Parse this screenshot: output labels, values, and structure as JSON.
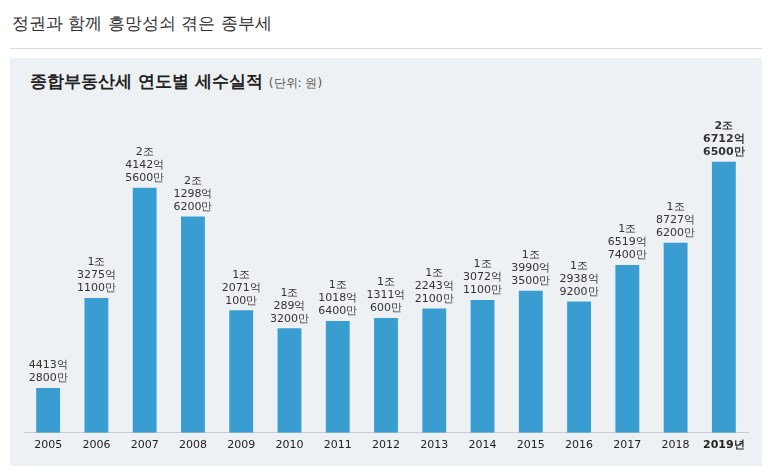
{
  "header": {
    "title": "정권과 함께 흥망성쇠 겪은 종부세"
  },
  "chart_data": {
    "type": "bar",
    "title": "종합부동산세 연도별 세수실적",
    "subtitle": "(단위: 원)",
    "categories": [
      "2005",
      "2006",
      "2007",
      "2008",
      "2009",
      "2010",
      "2011",
      "2012",
      "2013",
      "2014",
      "2015",
      "2016",
      "2017",
      "2018",
      "2019년"
    ],
    "values": [
      441328000000,
      1327511000000,
      2414256000000,
      2129862000000,
      1207101000000,
      1028932000000,
      1101864000000,
      1131106000000,
      1224321000000,
      1307211000000,
      1399035000000,
      1293892000000,
      1651974000000,
      1872762000000,
      2671265000000
    ],
    "value_labels": [
      [
        "4413억",
        "2800만"
      ],
      [
        "1조",
        "3275억",
        "1100만"
      ],
      [
        "2조",
        "4142억",
        "5600만"
      ],
      [
        "2조",
        "1298억",
        "6200만"
      ],
      [
        "1조",
        "2071억",
        "100만"
      ],
      [
        "1조",
        "289억",
        "3200만"
      ],
      [
        "1조",
        "1018억",
        "6400만"
      ],
      [
        "1조",
        "1311억",
        "600만"
      ],
      [
        "1조",
        "2243억",
        "2100만"
      ],
      [
        "1조",
        "3072억",
        "1100만"
      ],
      [
        "1조",
        "3990억",
        "3500만"
      ],
      [
        "1조",
        "2938억",
        "9200만"
      ],
      [
        "1조",
        "6519억",
        "7400만"
      ],
      [
        "1조",
        "8727억",
        "6200만"
      ],
      [
        "2조",
        "6712억",
        "6500만"
      ]
    ],
    "color": "#3a9dd1",
    "ylim": [
      0,
      3200000000000
    ],
    "grid": false,
    "data_labels": true,
    "tick_labels": "x"
  }
}
